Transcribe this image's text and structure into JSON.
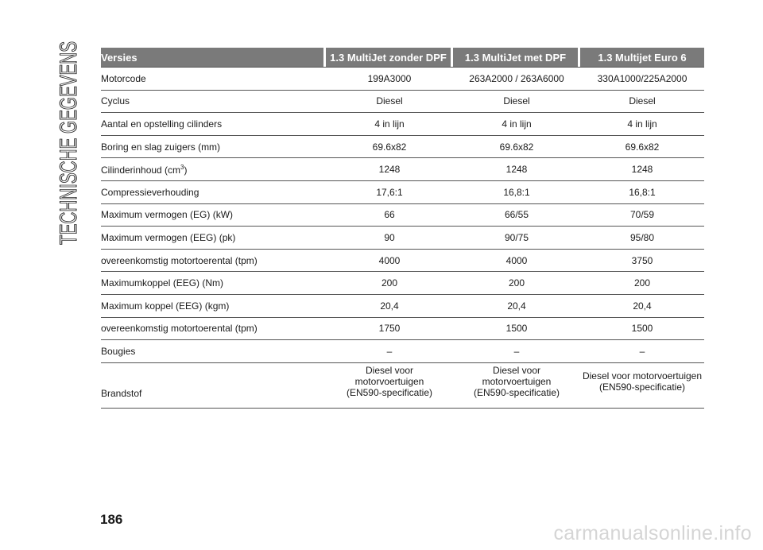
{
  "side_title": "TECHNISCHE GEGEVENS",
  "page_number": "186",
  "watermark": "carmanualsonline.info",
  "table": {
    "headers": [
      "Versies",
      "1.3 MultiJet zonder DPF",
      "1.3 MultiJet met DPF",
      "1.3 Multijet Euro 6"
    ],
    "rows": [
      {
        "label": "Motorcode",
        "v1": "199A3000",
        "v2": "263A2000 / 263A6000",
        "v3": "330A1000/225A2000"
      },
      {
        "label": "Cyclus",
        "v1": "Diesel",
        "v2": "Diesel",
        "v3": "Diesel"
      },
      {
        "label": "Aantal en opstelling cilinders",
        "v1": "4 in lijn",
        "v2": "4 in lijn",
        "v3": "4 in lijn"
      },
      {
        "label": "Boring en slag zuigers (mm)",
        "v1": "69.6x82",
        "v2": "69.6x82",
        "v3": "69.6x82"
      },
      {
        "label": "Cilinderinhoud (cm",
        "label_sup": "3",
        "label_end": ")",
        "v1": "1248",
        "v2": "1248",
        "v3": "1248"
      },
      {
        "label": "Compressieverhouding",
        "v1": "17,6:1",
        "v2": "16,8:1",
        "v3": "16,8:1"
      },
      {
        "label": "Maximum vermogen (EG) (kW)",
        "v1": "66",
        "v2": "66/55",
        "v3": "70/59"
      },
      {
        "label": "Maximum vermogen (EEG) (pk)",
        "v1": "90",
        "v2": "90/75",
        "v3": "95/80"
      },
      {
        "label": "overeenkomstig motortoerental (tpm)",
        "v1": "4000",
        "v2": "4000",
        "v3": "3750"
      },
      {
        "label": "Maximumkoppel (EEG) (Nm)",
        "v1": "200",
        "v2": "200",
        "v3": "200"
      },
      {
        "label": "Maximum koppel (EEG) (kgm)",
        "v1": "20,4",
        "v2": "20,4",
        "v3": "20,4"
      },
      {
        "label": "overeenkomstig motortoerental (tpm)",
        "v1": "1750",
        "v2": "1500",
        "v3": "1500"
      },
      {
        "label": "Bougies",
        "v1": "–",
        "v2": "–",
        "v3": "–"
      }
    ],
    "fuel_row": {
      "label": "Brandstof",
      "v1": [
        "Diesel voor",
        "motorvoertuigen",
        "(EN590-specificatie)"
      ],
      "v2": [
        "Diesel voor",
        "motorvoertuigen",
        "(EN590-specificatie)"
      ],
      "v3": [
        "Diesel voor motorvoertuigen",
        "(EN590-specificatie)"
      ]
    }
  }
}
